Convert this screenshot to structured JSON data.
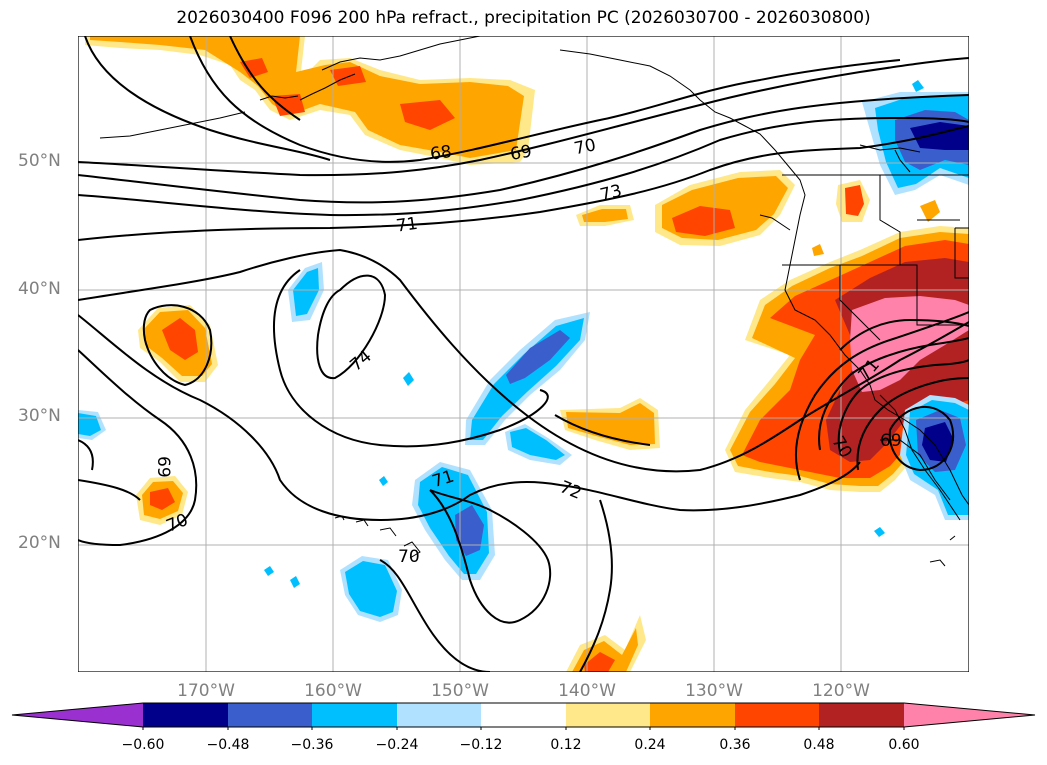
{
  "title": "2026030400 F096 200 hPa refract., precipitation PC (2026030700 - 2026030800)",
  "lat_labels": [
    "50°N",
    "40°N",
    "30°N",
    "20°N"
  ],
  "lon_labels": [
    "170°W",
    "160°W",
    "150°W",
    "140°W",
    "130°W",
    "120°W"
  ],
  "contour_labels": [
    "68",
    "69",
    "70",
    "73",
    "71",
    "74",
    "69",
    "70",
    "71",
    "70",
    "72",
    "71",
    "70",
    "69"
  ],
  "colorbar": {
    "ticks": [
      "−0.60",
      "−0.48",
      "−0.36",
      "−0.24",
      "−0.12",
      "0.12",
      "0.24",
      "0.36",
      "0.48",
      "0.60"
    ],
    "colors": [
      "#9b30d0",
      "#00008b",
      "#3a5fcd",
      "#00bfff",
      "#b0e2ff",
      "#ffffff",
      "#ffe88a",
      "#ffa500",
      "#ff4500",
      "#b22222",
      "#ff82ab",
      "#ff82ab"
    ]
  },
  "shading_colors": {
    "neg_light": "#b0e2ff",
    "neg_mid": "#00bfff",
    "neg_strong": "#3a5fcd",
    "neg_max": "#00008b",
    "pos_light": "#ffe88a",
    "pos_mid": "#ffa500",
    "pos_strong": "#ff4500",
    "pos_deep": "#b22222",
    "pos_max": "#ff82ab"
  }
}
